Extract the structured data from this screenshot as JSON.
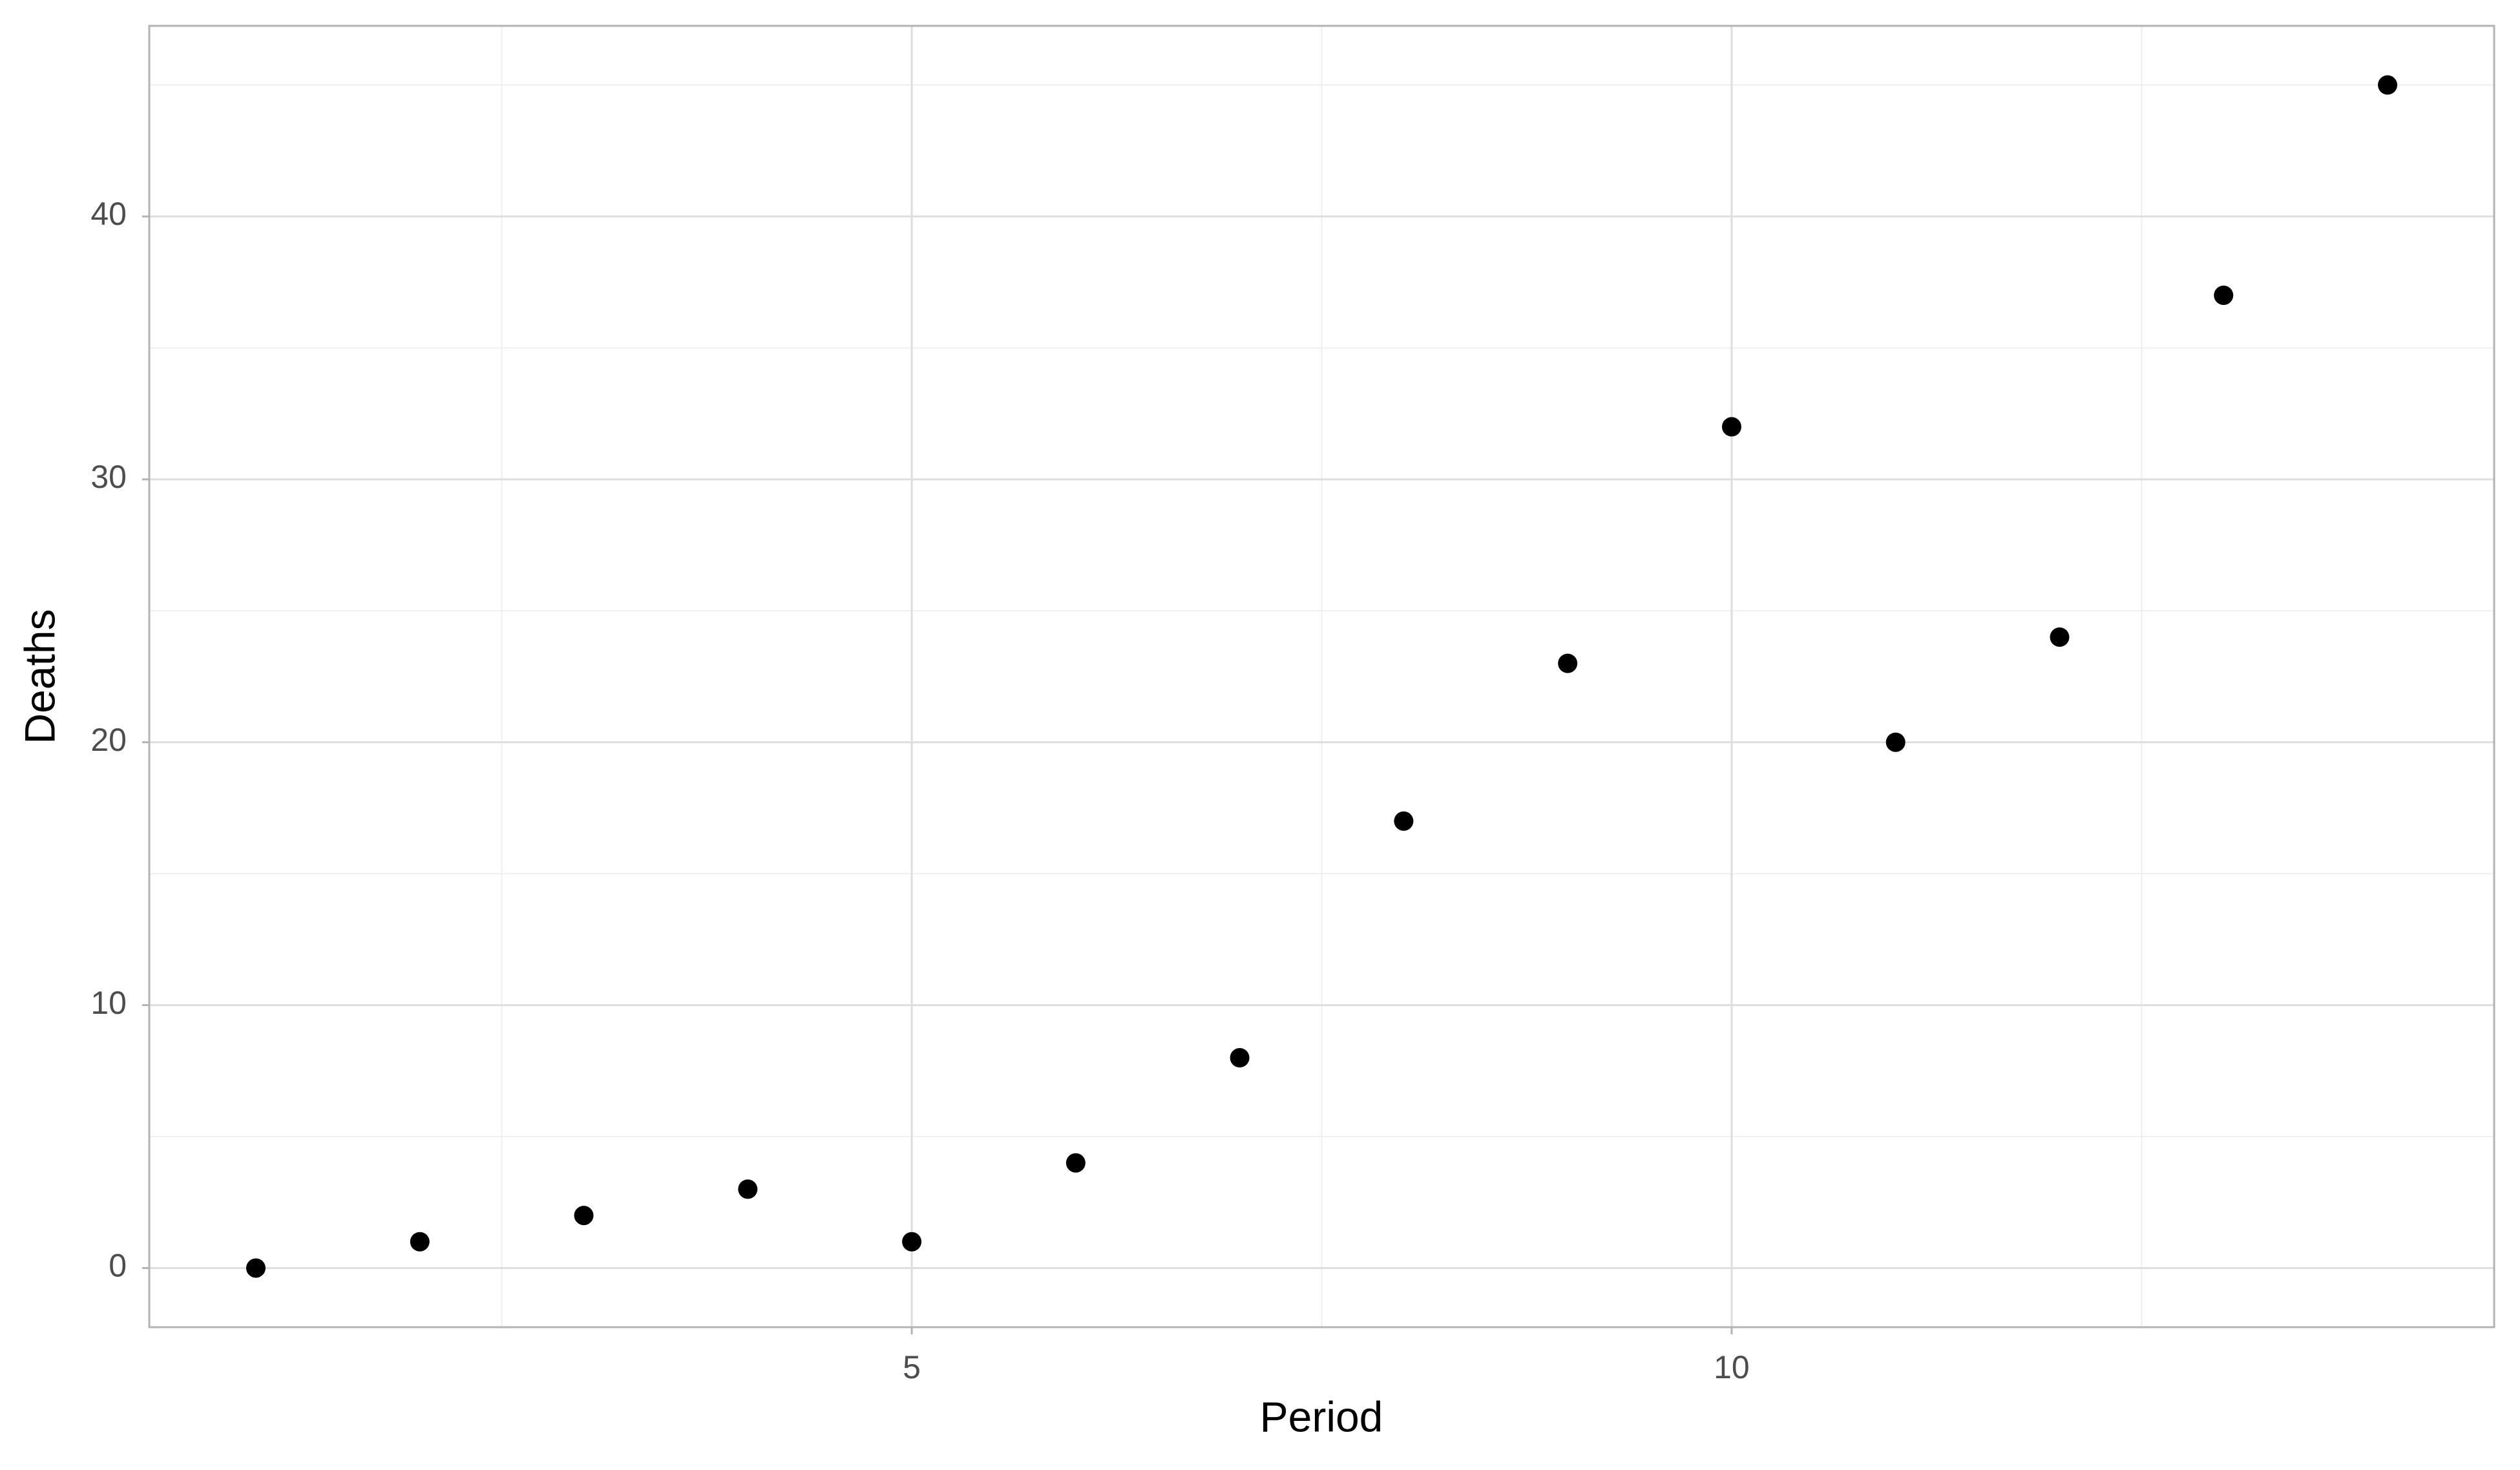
{
  "chart_data": {
    "type": "scatter",
    "x": [
      1,
      2,
      3,
      4,
      5,
      6,
      7,
      8,
      9,
      10,
      11,
      12,
      13,
      14
    ],
    "series": [
      {
        "name": "Deaths",
        "color": "#000000",
        "values": [
          0,
          1,
          2,
          3,
          1,
          4,
          8,
          17,
          23,
          32,
          20,
          24,
          37,
          45
        ]
      }
    ],
    "x_label": "Period",
    "y_label": "Deaths",
    "xlim": [
      0.35,
      14.65
    ],
    "xticks": [
      5,
      10
    ],
    "ylim": [
      -2.25,
      47.25
    ],
    "yticks": [
      0,
      10,
      20,
      30,
      40
    ],
    "grid": true
  }
}
